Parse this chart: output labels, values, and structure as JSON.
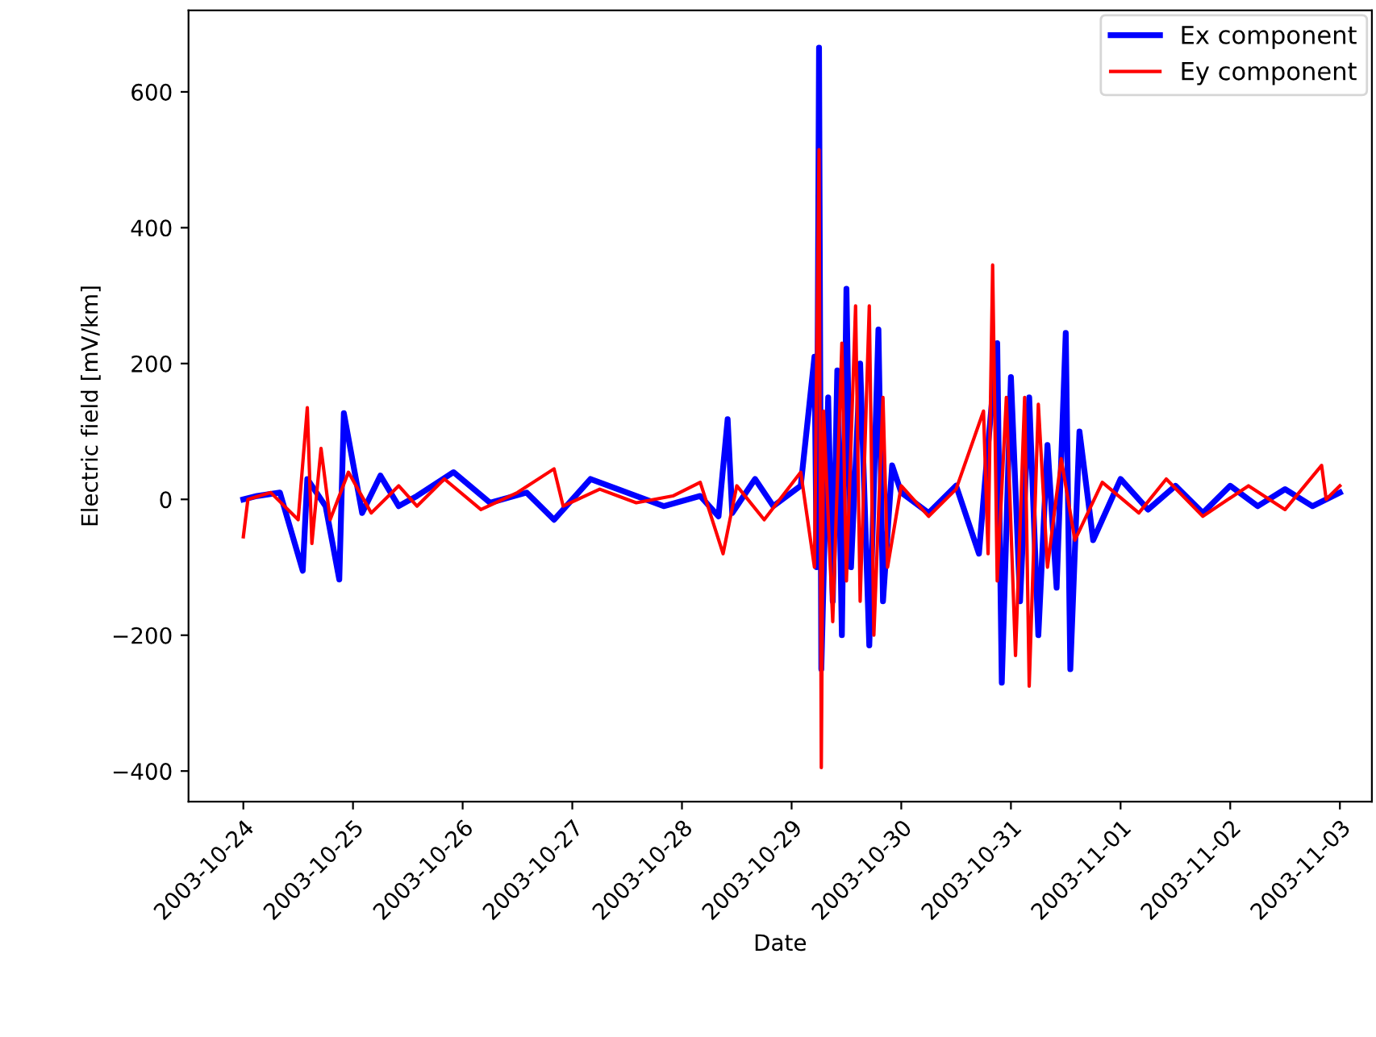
{
  "chart_data": {
    "type": "line",
    "xlabel": "Date",
    "ylabel": "Electric field [mV/km]",
    "xlim": [
      "2003-10-23T12:00",
      "2003-11-03T07:00"
    ],
    "ylim": [
      -445,
      720
    ],
    "xticks": [
      "2003-10-24",
      "2003-10-25",
      "2003-10-26",
      "2003-10-27",
      "2003-10-28",
      "2003-10-29",
      "2003-10-30",
      "2003-10-31",
      "2003-11-01",
      "2003-11-02",
      "2003-11-03"
    ],
    "yticks": [
      -400,
      -200,
      0,
      200,
      400,
      600
    ],
    "grid": false,
    "legend": "top right",
    "marker": "none",
    "line_style": "solid",
    "series": [
      {
        "name": "Ex component",
        "color": "#0000ff",
        "x": [
          "2003-10-24T00:00",
          "2003-10-24T03:00",
          "2003-10-24T08:00",
          "2003-10-24T13:00",
          "2003-10-24T14:00",
          "2003-10-24T18:00",
          "2003-10-24T21:00",
          "2003-10-24T22:00",
          "2003-10-25T02:00",
          "2003-10-25T06:00",
          "2003-10-25T10:00",
          "2003-10-25T14:00",
          "2003-10-25T22:00",
          "2003-10-26T06:00",
          "2003-10-26T14:00",
          "2003-10-26T20:00",
          "2003-10-27T04:00",
          "2003-10-27T12:00",
          "2003-10-27T20:00",
          "2003-10-28T04:00",
          "2003-10-28T08:00",
          "2003-10-28T10:00",
          "2003-10-28T11:00",
          "2003-10-28T16:00",
          "2003-10-28T20:00",
          "2003-10-29T02:00",
          "2003-10-29T05:00",
          "2003-10-29T05:30",
          "2003-10-29T06:00",
          "2003-10-29T06:30",
          "2003-10-29T08:00",
          "2003-10-29T09:00",
          "2003-10-29T10:00",
          "2003-10-29T11:00",
          "2003-10-29T12:00",
          "2003-10-29T13:00",
          "2003-10-29T15:00",
          "2003-10-29T17:00",
          "2003-10-29T19:00",
          "2003-10-29T20:00",
          "2003-10-29T22:00",
          "2003-10-30T00:00",
          "2003-10-30T06:00",
          "2003-10-30T12:00",
          "2003-10-30T17:00",
          "2003-10-30T19:00",
          "2003-10-30T21:00",
          "2003-10-30T22:00",
          "2003-10-31T00:00",
          "2003-10-31T02:00",
          "2003-10-31T04:00",
          "2003-10-31T06:00",
          "2003-10-31T08:00",
          "2003-10-31T10:00",
          "2003-10-31T12:00",
          "2003-10-31T13:00",
          "2003-10-31T15:00",
          "2003-10-31T18:00",
          "2003-11-01T00:00",
          "2003-11-01T06:00",
          "2003-11-01T12:00",
          "2003-11-01T18:00",
          "2003-11-02T00:00",
          "2003-11-02T06:00",
          "2003-11-02T12:00",
          "2003-11-02T18:00",
          "2003-11-03T00:00"
        ],
        "values": [
          0,
          5,
          10,
          -105,
          30,
          -10,
          -118,
          127,
          -20,
          35,
          -10,
          5,
          40,
          -5,
          10,
          -30,
          30,
          10,
          -10,
          5,
          -25,
          118,
          -20,
          30,
          -10,
          20,
          210,
          -100,
          665,
          -250,
          150,
          -150,
          190,
          -200,
          310,
          -100,
          200,
          -215,
          250,
          -150,
          50,
          10,
          -20,
          20,
          -80,
          80,
          230,
          -270,
          180,
          -150,
          150,
          -200,
          80,
          -130,
          245,
          -250,
          100,
          -60,
          30,
          -15,
          20,
          -20,
          20,
          -10,
          15,
          -10,
          10
        ]
      },
      {
        "name": "Ey component",
        "color": "#ff0000",
        "x": [
          "2003-10-24T00:00",
          "2003-10-24T01:00",
          "2003-10-24T06:00",
          "2003-10-24T12:00",
          "2003-10-24T14:00",
          "2003-10-24T15:00",
          "2003-10-24T17:00",
          "2003-10-24T19:00",
          "2003-10-24T23:00",
          "2003-10-25T04:00",
          "2003-10-25T10:00",
          "2003-10-25T14:00",
          "2003-10-25T20:00",
          "2003-10-26T04:00",
          "2003-10-26T12:00",
          "2003-10-26T20:00",
          "2003-10-26T22:00",
          "2003-10-27T06:00",
          "2003-10-27T14:00",
          "2003-10-27T22:00",
          "2003-10-28T04:00",
          "2003-10-28T09:00",
          "2003-10-28T12:00",
          "2003-10-28T18:00",
          "2003-10-29T02:00",
          "2003-10-29T05:00",
          "2003-10-29T06:00",
          "2003-10-29T06:30",
          "2003-10-29T07:00",
          "2003-10-29T09:00",
          "2003-10-29T11:00",
          "2003-10-29T12:00",
          "2003-10-29T14:00",
          "2003-10-29T15:00",
          "2003-10-29T17:00",
          "2003-10-29T18:00",
          "2003-10-29T20:00",
          "2003-10-29T21:00",
          "2003-10-30T00:00",
          "2003-10-30T06:00",
          "2003-10-30T12:00",
          "2003-10-30T18:00",
          "2003-10-30T19:00",
          "2003-10-30T20:00",
          "2003-10-30T21:00",
          "2003-10-30T23:00",
          "2003-10-31T01:00",
          "2003-10-31T03:00",
          "2003-10-31T04:00",
          "2003-10-31T06:00",
          "2003-10-31T08:00",
          "2003-10-31T11:00",
          "2003-10-31T14:00",
          "2003-10-31T20:00",
          "2003-11-01T04:00",
          "2003-11-01T10:00",
          "2003-11-01T18:00",
          "2003-11-02T04:00",
          "2003-11-02T12:00",
          "2003-11-02T20:00",
          "2003-11-02T21:00",
          "2003-11-03T00:00"
        ],
        "values": [
          -55,
          0,
          10,
          -30,
          135,
          -65,
          75,
          -30,
          40,
          -20,
          20,
          -10,
          30,
          -15,
          10,
          45,
          -10,
          15,
          -5,
          5,
          25,
          -80,
          20,
          -30,
          40,
          -100,
          515,
          -395,
          130,
          -180,
          230,
          -120,
          285,
          -150,
          285,
          -200,
          150,
          -100,
          20,
          -25,
          15,
          130,
          -80,
          345,
          -120,
          150,
          -230,
          150,
          -275,
          140,
          -100,
          60,
          -60,
          25,
          -20,
          30,
          -25,
          20,
          -15,
          50,
          0,
          20
        ]
      }
    ]
  }
}
